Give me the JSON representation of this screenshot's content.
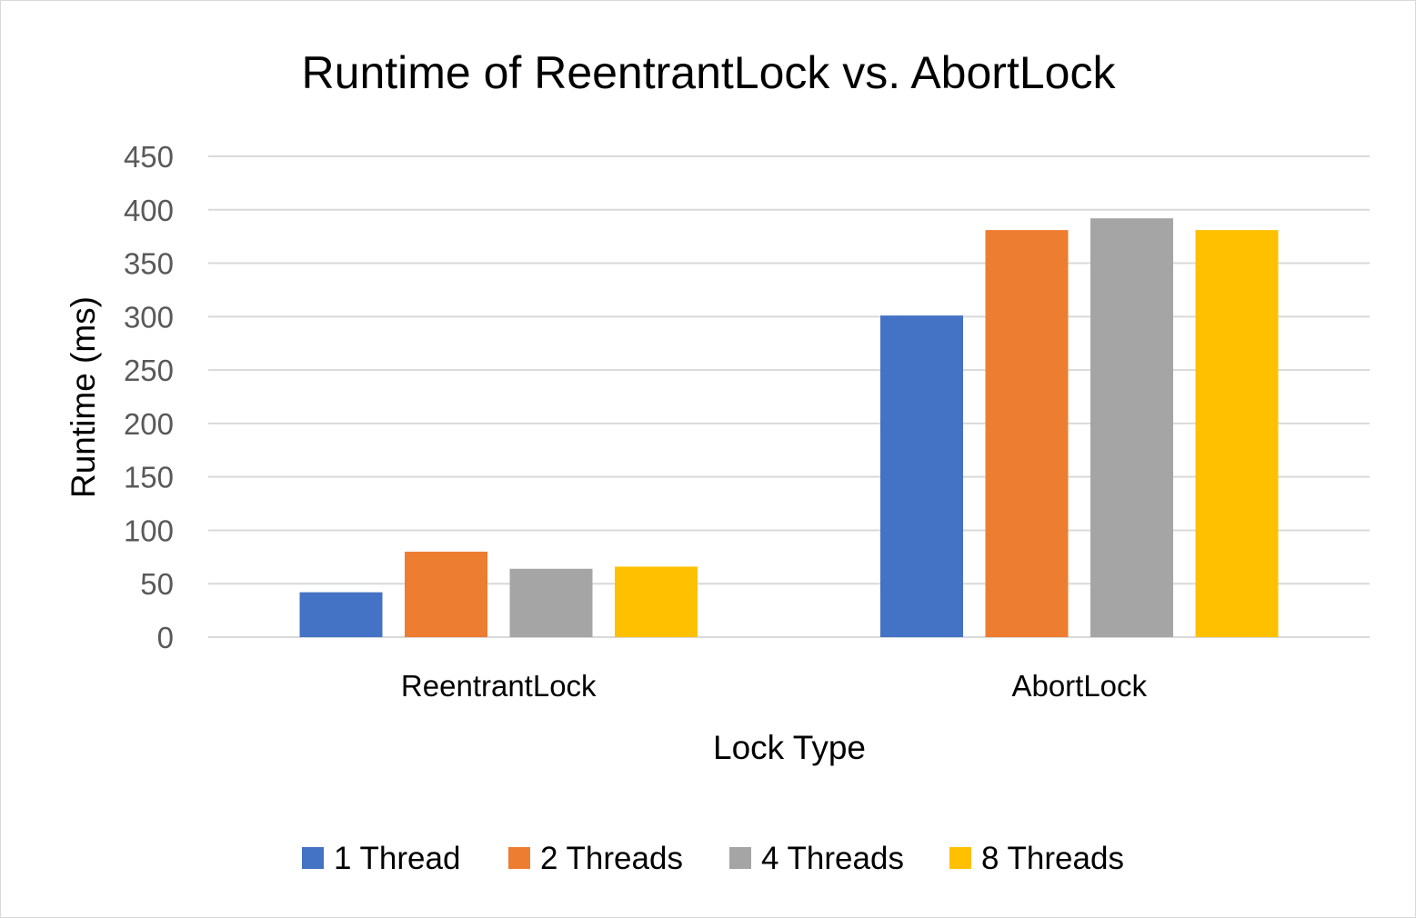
{
  "chart_data": {
    "type": "bar",
    "title": "Runtime of ReentrantLock vs. AbortLock",
    "xlabel": "Lock Type",
    "ylabel": "Runtime (ms)",
    "categories": [
      "ReentrantLock",
      "AbortLock"
    ],
    "series": [
      {
        "name": "1 Thread",
        "color": "#4472C4",
        "values": [
          42,
          301
        ]
      },
      {
        "name": "2 Threads",
        "color": "#ED7D31",
        "values": [
          80,
          381
        ]
      },
      {
        "name": "4 Threads",
        "color": "#A5A5A5",
        "values": [
          64,
          392
        ]
      },
      {
        "name": "8 Threads",
        "color": "#FFC000",
        "values": [
          66,
          381
        ]
      }
    ],
    "ylim": [
      0,
      450
    ],
    "yticks": [
      0,
      50,
      100,
      150,
      200,
      250,
      300,
      350,
      400,
      450
    ],
    "grid": true,
    "legend_position": "bottom"
  }
}
